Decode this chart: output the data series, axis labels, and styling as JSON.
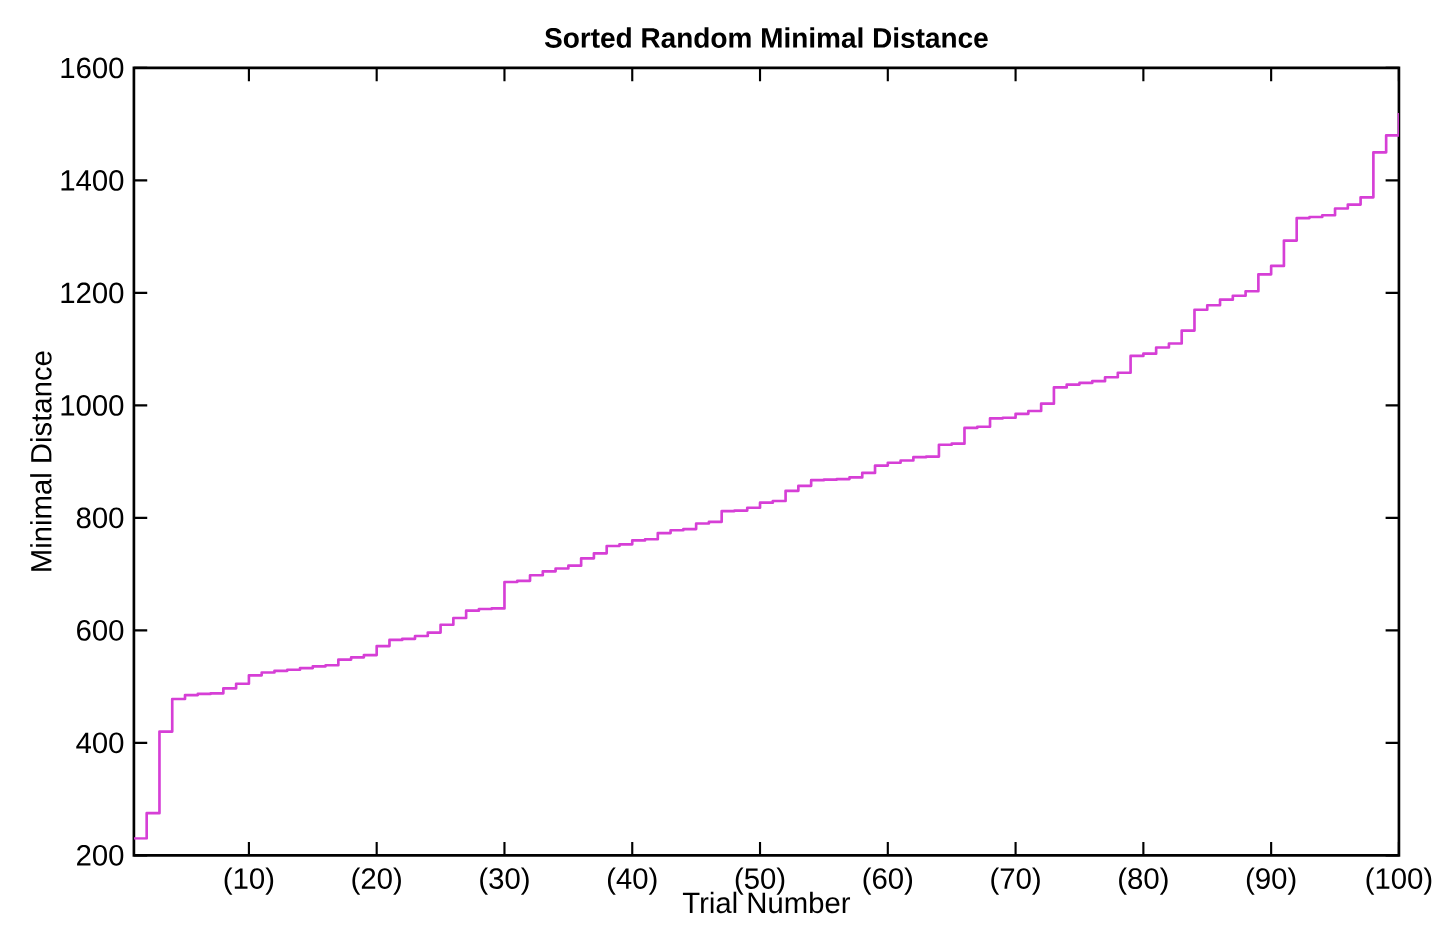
{
  "chart_data": {
    "type": "step",
    "title": "Sorted Random Minimal Distance",
    "xlabel": "Trial Number",
    "ylabel": "Minimal Distance",
    "x": [
      1,
      2,
      3,
      4,
      5,
      6,
      7,
      8,
      9,
      10,
      11,
      12,
      13,
      14,
      15,
      16,
      17,
      18,
      19,
      20,
      21,
      22,
      23,
      24,
      25,
      26,
      27,
      28,
      29,
      30,
      31,
      32,
      33,
      34,
      35,
      36,
      37,
      38,
      39,
      40,
      41,
      42,
      43,
      44,
      45,
      46,
      47,
      48,
      49,
      50,
      51,
      52,
      53,
      54,
      55,
      56,
      57,
      58,
      59,
      60,
      61,
      62,
      63,
      64,
      65,
      66,
      67,
      68,
      69,
      70,
      71,
      72,
      73,
      74,
      75,
      76,
      77,
      78,
      79,
      80,
      81,
      82,
      83,
      84,
      85,
      86,
      87,
      88,
      89,
      90,
      91,
      92,
      93,
      94,
      95,
      96,
      97,
      98,
      99,
      100
    ],
    "values": [
      230,
      275,
      420,
      478,
      485,
      487,
      488,
      497,
      505,
      520,
      525,
      528,
      530,
      533,
      536,
      538,
      548,
      552,
      556,
      572,
      583,
      585,
      590,
      596,
      610,
      622,
      635,
      638,
      639,
      686,
      688,
      698,
      705,
      710,
      715,
      728,
      737,
      750,
      753,
      760,
      762,
      773,
      778,
      780,
      790,
      793,
      812,
      813,
      818,
      827,
      830,
      848,
      857,
      867,
      868,
      869,
      872,
      880,
      893,
      898,
      902,
      908,
      909,
      930,
      932,
      960,
      962,
      977,
      978,
      985,
      990,
      1003,
      1032,
      1037,
      1040,
      1043,
      1050,
      1058,
      1088,
      1092,
      1103,
      1110,
      1133,
      1170,
      1178,
      1188,
      1195,
      1203,
      1233,
      1248,
      1293,
      1333,
      1335,
      1338,
      1350,
      1357,
      1370,
      1450,
      1480,
      1520
    ],
    "color": "#d63fd6",
    "xlim": [
      1,
      100
    ],
    "ylim": [
      200,
      1600
    ],
    "xticks": [
      {
        "value": 10,
        "label": "(10)"
      },
      {
        "value": 20,
        "label": "(20)"
      },
      {
        "value": 30,
        "label": "(30)"
      },
      {
        "value": 40,
        "label": "(40)"
      },
      {
        "value": 50,
        "label": "(50)"
      },
      {
        "value": 60,
        "label": "(60)"
      },
      {
        "value": 70,
        "label": "(70)"
      },
      {
        "value": 80,
        "label": "(80)"
      },
      {
        "value": 90,
        "label": "(90)"
      },
      {
        "value": 100,
        "label": "(100)"
      }
    ],
    "yticks": [
      200,
      400,
      600,
      800,
      1000,
      1200,
      1400,
      1600
    ]
  }
}
